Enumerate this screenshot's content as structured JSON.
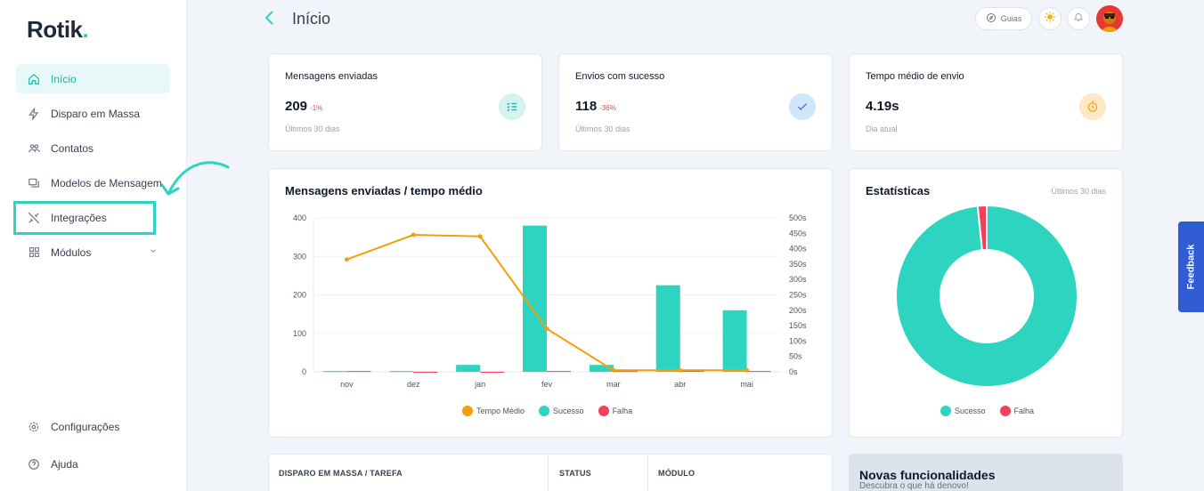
{
  "app": {
    "logo": "Rotik",
    "logo_dot": "."
  },
  "sidebar": {
    "items": [
      {
        "label": "Início",
        "icon": "home-icon"
      },
      {
        "label": "Disparo em Massa",
        "icon": "lightning-icon"
      },
      {
        "label": "Contatos",
        "icon": "contacts-icon"
      },
      {
        "label": "Modelos de Mensagem",
        "icon": "message-template-icon"
      },
      {
        "label": "Integrações",
        "icon": "plug-icon"
      },
      {
        "label": "Módulos",
        "icon": "grid-icon"
      }
    ],
    "bottom": [
      {
        "label": "Configurações",
        "icon": "gear-icon"
      },
      {
        "label": "Ajuda",
        "icon": "help-icon"
      }
    ]
  },
  "header": {
    "title": "Início",
    "guides_label": "Guias"
  },
  "stats": [
    {
      "title": "Mensagens enviadas",
      "value": "209",
      "delta": "-1%",
      "sub": "Últimos 30 dias",
      "icon": "list-check-icon"
    },
    {
      "title": "Envios com sucesso",
      "value": "118",
      "delta": "-36%",
      "sub": "Últimos 30 dias",
      "icon": "check-icon"
    },
    {
      "title": "Tempo médio de envio",
      "value": "4.19s",
      "delta": "",
      "sub": "Dia atual",
      "icon": "stopwatch-icon"
    }
  ],
  "colors": {
    "accent": "#2dd4bf",
    "success": "#2dd4bf",
    "failure": "#f0415d",
    "avg_time": "#f59e0b"
  },
  "chart_data": [
    {
      "type": "bar",
      "title": "Mensagens enviadas / tempo médio",
      "categories": [
        "nov",
        "dez",
        "jan",
        "fev",
        "mar",
        "abr",
        "mai"
      ],
      "series": [
        {
          "name": "Sucesso",
          "type": "bar",
          "axis": "left",
          "values": [
            2,
            2,
            18,
            380,
            18,
            225,
            160
          ]
        },
        {
          "name": "Falha",
          "type": "bar",
          "axis": "left",
          "values": [
            2,
            0,
            0,
            2,
            2,
            6,
            2
          ]
        },
        {
          "name": "Tempo Médio",
          "type": "line",
          "axis": "right",
          "values": [
            365,
            445,
            440,
            140,
            5,
            5,
            5
          ]
        }
      ],
      "y_left": {
        "ticks": [
          "0",
          "100",
          "200",
          "300",
          "400"
        ],
        "min": 0,
        "max": 400
      },
      "y_right": {
        "ticks": [
          "0s",
          "50s",
          "100s",
          "150s",
          "200s",
          "250s",
          "300s",
          "350s",
          "400s",
          "450s",
          "500s"
        ],
        "min": 0,
        "max": 500
      },
      "legend": [
        "Tempo Médio",
        "Sucesso",
        "Falha"
      ],
      "grid": true
    },
    {
      "type": "pie",
      "title": "Estatísticas",
      "subtitle": "Últimos 30 dias",
      "labels": [
        "Sucesso",
        "Falha"
      ],
      "values": [
        98.4,
        1.6
      ],
      "legend": [
        "Sucesso",
        "Falha"
      ]
    }
  ],
  "table": {
    "headers": [
      "DISPARO EM MASSA / TAREFA",
      "STATUS",
      "MÓDULO"
    ]
  },
  "news": {
    "title": "Novas funcionalidades",
    "subtitle": "Descubra o que há denovo!"
  },
  "feedback_label": "Feedback"
}
